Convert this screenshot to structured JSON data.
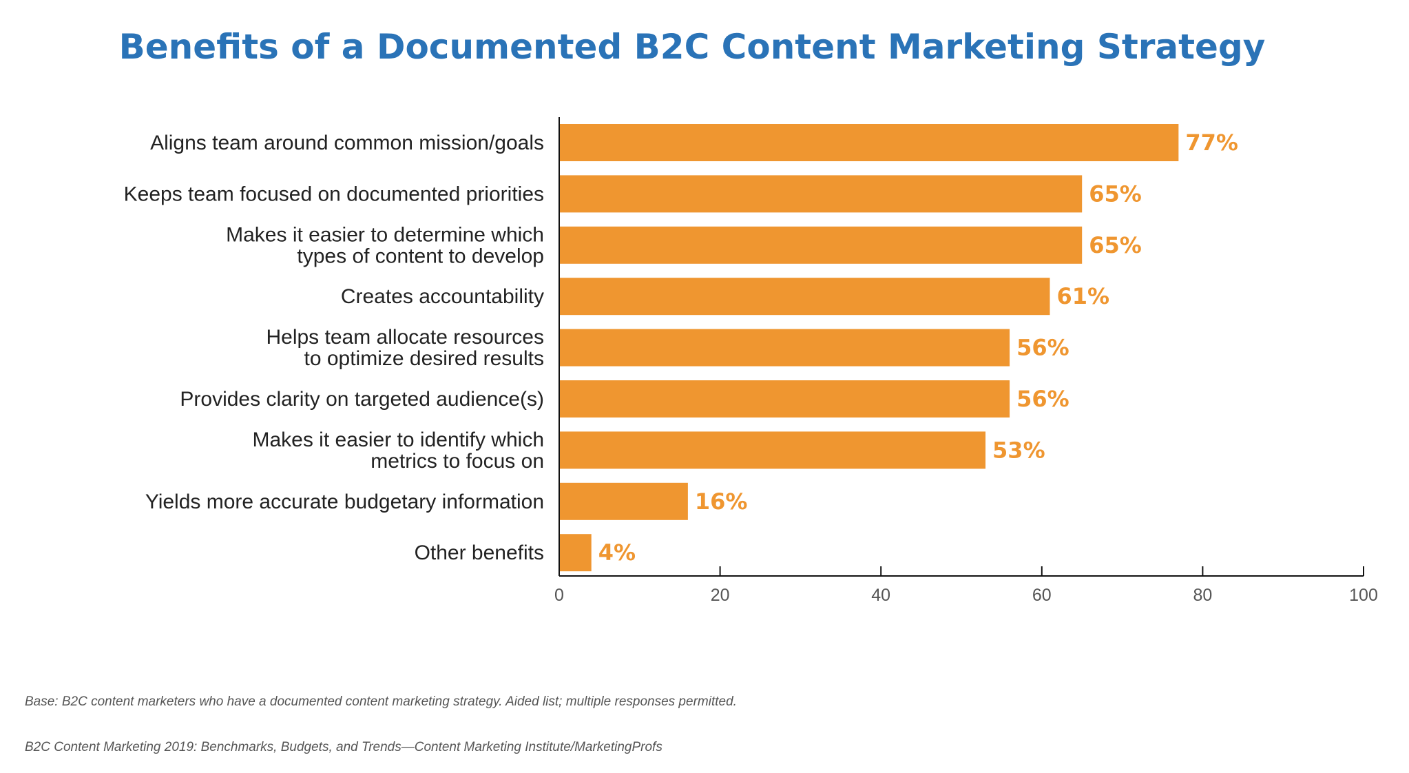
{
  "chart_data": {
    "type": "bar",
    "orientation": "horizontal",
    "title": "Benefits of a Documented B2C Content Marketing Strategy",
    "categories": [
      [
        "Aligns team around common mission/goals"
      ],
      [
        "Keeps team focused on documented priorities"
      ],
      [
        "Makes it easier to determine which",
        "types of content to develop"
      ],
      [
        "Creates accountability"
      ],
      [
        "Helps team allocate resources",
        "to optimize desired results"
      ],
      [
        "Provides clarity on targeted audience(s)"
      ],
      [
        "Makes it easier to identify which",
        "metrics to focus on"
      ],
      [
        "Yields more accurate budgetary information"
      ],
      [
        "Other benefits"
      ]
    ],
    "values": [
      77,
      65,
      65,
      61,
      56,
      56,
      53,
      16,
      4
    ],
    "value_labels": [
      "77%",
      "65%",
      "65%",
      "61%",
      "56%",
      "56%",
      "53%",
      "16%",
      "4%"
    ],
    "xlim": [
      0,
      100
    ],
    "xticks": [
      0,
      20,
      40,
      60,
      80,
      100
    ],
    "xtick_labels": [
      "0",
      "20",
      "40",
      "60",
      "80",
      "100"
    ],
    "xlabel": "",
    "ylabel": "",
    "grid": false,
    "legend": "none",
    "bar_color": "#ef9630",
    "title_color": "#2a73b7"
  },
  "footnotes": {
    "base": "Base: B2C content marketers who have a documented content marketing strategy. Aided list; multiple responses permitted.",
    "source": "B2C Content Marketing 2019: Benchmarks, Budgets, and Trends—Content Marketing Institute/MarketingProfs"
  }
}
